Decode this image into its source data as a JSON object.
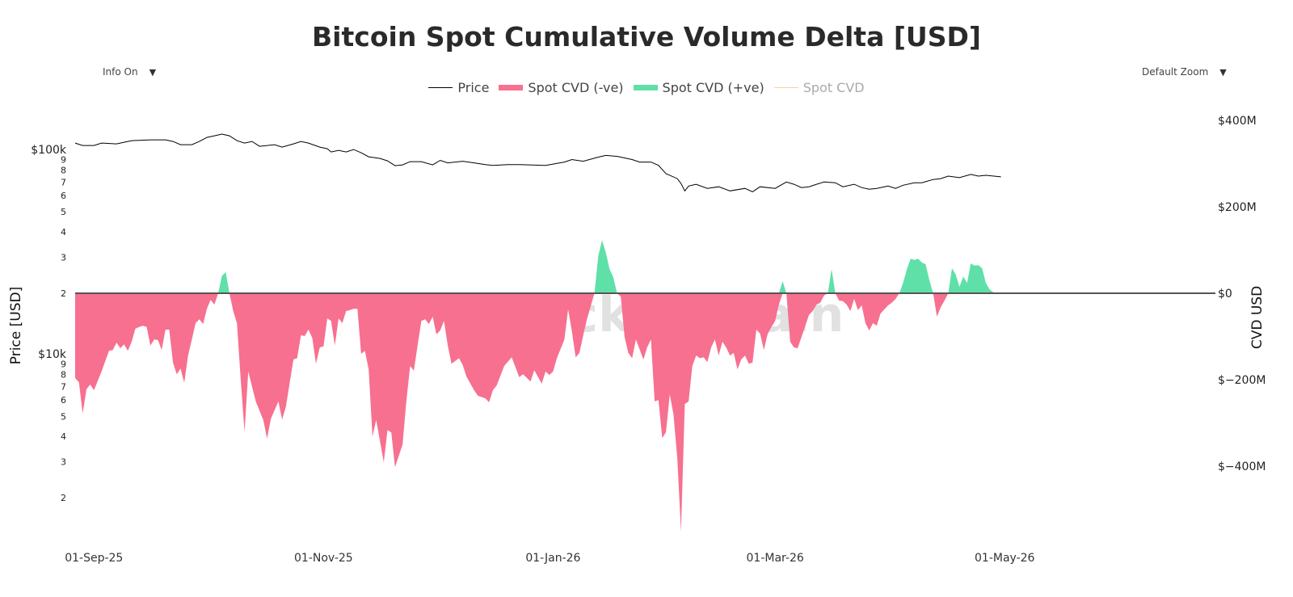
{
  "title": "Bitcoin Spot Cumulative Volume Delta [USD]",
  "controls": {
    "info_label": "Info On",
    "zoom_label": "Default Zoom",
    "dropdown_icon": "triangle-down-icon"
  },
  "watermark": "_checkonchain",
  "legend": [
    {
      "label": "Price",
      "color": "#000000",
      "kind": "line"
    },
    {
      "label": "Spot CVD (-ve)",
      "color": "#f7708f",
      "kind": "box"
    },
    {
      "label": "Spot CVD (+ve)",
      "color": "#5fe0a9",
      "kind": "box"
    },
    {
      "label": "Spot CVD",
      "color": "#f0d5a8",
      "kind": "line",
      "hidden": true
    }
  ],
  "chart_data": {
    "type": "line+area",
    "title": "Bitcoin Spot Cumulative Volume Delta [USD]",
    "ylabel_left": "Price [USD]",
    "ylabel_right": "CVD USD",
    "left_axis": {
      "scale": "log",
      "range": [
        1280,
        148000
      ],
      "ticks": [
        [
          100000,
          "$100k"
        ],
        [
          90000,
          "9"
        ],
        [
          80000,
          "8"
        ],
        [
          70000,
          "7"
        ],
        [
          60000,
          "6"
        ],
        [
          50000,
          "5"
        ],
        [
          40000,
          "4"
        ],
        [
          30000,
          "3"
        ],
        [
          20000,
          "2"
        ],
        [
          10000,
          "$10k"
        ],
        [
          9000,
          "9"
        ],
        [
          8000,
          "8"
        ],
        [
          7000,
          "7"
        ],
        [
          6000,
          "6"
        ],
        [
          5000,
          "5"
        ],
        [
          4000,
          "4"
        ],
        [
          3000,
          "3"
        ],
        [
          2000,
          "2"
        ]
      ]
    },
    "right_axis": {
      "scale": "linear",
      "range": [
        -564,
        411
      ],
      "unit": "USD millions",
      "ticks": [
        [
          400,
          "$400M"
        ],
        [
          200,
          "$200M"
        ],
        [
          0,
          "$0"
        ],
        [
          -200,
          "$−200M"
        ],
        [
          -400,
          "$−400M"
        ]
      ]
    },
    "x_axis": {
      "range": [
        "2025-08-27",
        "2026-06-26"
      ],
      "ticks": [
        [
          "2025-09-01",
          "01-Sep-25"
        ],
        [
          "2025-11-01",
          "01-Nov-25"
        ],
        [
          "2026-01-01",
          "01-Jan-26"
        ],
        [
          "2026-03-01",
          "01-Mar-26"
        ],
        [
          "2026-05-01",
          "01-May-26"
        ]
      ]
    },
    "grid": false,
    "legend_position": "top-center",
    "price": [
      [
        "2025-08-27",
        108500
      ],
      [
        "2025-08-29",
        105600
      ],
      [
        "2025-09-01",
        105600
      ],
      [
        "2025-09-03",
        108500
      ],
      [
        "2025-09-07",
        107500
      ],
      [
        "2025-09-11",
        111500
      ],
      [
        "2025-09-16",
        112500
      ],
      [
        "2025-09-20",
        112500
      ],
      [
        "2025-09-22",
        110500
      ],
      [
        "2025-09-24",
        106600
      ],
      [
        "2025-09-27",
        106600
      ],
      [
        "2025-09-29",
        110500
      ],
      [
        "2025-10-01",
        115700
      ],
      [
        "2025-10-03",
        117800
      ],
      [
        "2025-10-05",
        120000
      ],
      [
        "2025-10-07",
        117800
      ],
      [
        "2025-10-09",
        111500
      ],
      [
        "2025-10-11",
        108500
      ],
      [
        "2025-10-13",
        110500
      ],
      [
        "2025-10-15",
        104600
      ],
      [
        "2025-10-19",
        106600
      ],
      [
        "2025-10-21",
        103700
      ],
      [
        "2025-10-24",
        107500
      ],
      [
        "2025-10-26",
        110500
      ],
      [
        "2025-10-28",
        108500
      ],
      [
        "2025-10-31",
        103700
      ],
      [
        "2025-11-02",
        101800
      ],
      [
        "2025-11-03",
        98200
      ],
      [
        "2025-11-05",
        100000
      ],
      [
        "2025-11-07",
        98200
      ],
      [
        "2025-11-09",
        100900
      ],
      [
        "2025-11-11",
        97300
      ],
      [
        "2025-11-13",
        93000
      ],
      [
        "2025-11-16",
        91300
      ],
      [
        "2025-11-18",
        88800
      ],
      [
        "2025-11-20",
        84100
      ],
      [
        "2025-11-22",
        84900
      ],
      [
        "2025-11-24",
        88000
      ],
      [
        "2025-11-27",
        88000
      ],
      [
        "2025-11-30",
        84900
      ],
      [
        "2025-12-02",
        89300
      ],
      [
        "2025-12-04",
        86800
      ],
      [
        "2025-12-08",
        88400
      ],
      [
        "2025-12-11",
        86800
      ],
      [
        "2025-12-14",
        85200
      ],
      [
        "2025-12-16",
        84400
      ],
      [
        "2025-12-20",
        85200
      ],
      [
        "2025-12-23",
        85200
      ],
      [
        "2025-12-30",
        84400
      ],
      [
        "2026-01-04",
        87600
      ],
      [
        "2026-01-06",
        90100
      ],
      [
        "2026-01-09",
        88400
      ],
      [
        "2026-01-13",
        92600
      ],
      [
        "2026-01-15",
        94400
      ],
      [
        "2026-01-18",
        93500
      ],
      [
        "2026-01-22",
        90100
      ],
      [
        "2026-01-24",
        87600
      ],
      [
        "2026-01-27",
        87600
      ],
      [
        "2026-01-29",
        84400
      ],
      [
        "2026-01-31",
        76900
      ],
      [
        "2026-02-03",
        72700
      ],
      [
        "2026-02-04",
        68800
      ],
      [
        "2026-02-05",
        63300
      ],
      [
        "2026-02-06",
        66900
      ],
      [
        "2026-02-08",
        68200
      ],
      [
        "2026-02-11",
        65100
      ],
      [
        "2026-02-14",
        66300
      ],
      [
        "2026-02-17",
        63300
      ],
      [
        "2026-02-21",
        65100
      ],
      [
        "2026-02-23",
        62700
      ],
      [
        "2026-02-25",
        66300
      ],
      [
        "2026-03-01",
        65100
      ],
      [
        "2026-03-04",
        70000
      ],
      [
        "2026-03-06",
        68200
      ],
      [
        "2026-03-08",
        65700
      ],
      [
        "2026-03-10",
        66300
      ],
      [
        "2026-03-12",
        68200
      ],
      [
        "2026-03-14",
        70000
      ],
      [
        "2026-03-17",
        69400
      ],
      [
        "2026-03-19",
        66300
      ],
      [
        "2026-03-22",
        68200
      ],
      [
        "2026-03-24",
        65700
      ],
      [
        "2026-03-26",
        64500
      ],
      [
        "2026-03-28",
        65100
      ],
      [
        "2026-03-31",
        66900
      ],
      [
        "2026-04-02",
        65100
      ],
      [
        "2026-04-04",
        67500
      ],
      [
        "2026-04-07",
        69400
      ],
      [
        "2026-04-09",
        69400
      ],
      [
        "2026-04-12",
        72000
      ],
      [
        "2026-04-14",
        72700
      ],
      [
        "2026-04-16",
        74800
      ],
      [
        "2026-04-19",
        73500
      ],
      [
        "2026-04-22",
        76200
      ],
      [
        "2026-04-24",
        74800
      ],
      [
        "2026-04-26",
        75500
      ],
      [
        "2026-04-30",
        74200
      ]
    ],
    "spot_cvd_musd": [
      [
        "2025-08-27",
        -196
      ],
      [
        "2025-08-28",
        -206
      ],
      [
        "2025-08-29",
        -278
      ],
      [
        "2025-08-30",
        -222
      ],
      [
        "2025-08-31",
        -211
      ],
      [
        "2025-09-01",
        -224
      ],
      [
        "2025-09-03",
        -181
      ],
      [
        "2025-09-05",
        -133
      ],
      [
        "2025-09-06",
        -131
      ],
      [
        "2025-09-07",
        -114
      ],
      [
        "2025-09-08",
        -127
      ],
      [
        "2025-09-09",
        -118
      ],
      [
        "2025-09-10",
        -133
      ],
      [
        "2025-09-11",
        -112
      ],
      [
        "2025-09-12",
        -82
      ],
      [
        "2025-09-13",
        -78
      ],
      [
        "2025-09-14",
        -75
      ],
      [
        "2025-09-15",
        -78
      ],
      [
        "2025-09-16",
        -121
      ],
      [
        "2025-09-17",
        -107
      ],
      [
        "2025-09-18",
        -108
      ],
      [
        "2025-09-19",
        -131
      ],
      [
        "2025-09-20",
        -84
      ],
      [
        "2025-09-21",
        -84
      ],
      [
        "2025-09-22",
        -161
      ],
      [
        "2025-09-23",
        -187
      ],
      [
        "2025-09-24",
        -174
      ],
      [
        "2025-09-25",
        -207
      ],
      [
        "2025-09-26",
        -144
      ],
      [
        "2025-09-27",
        -107
      ],
      [
        "2025-09-28",
        -69
      ],
      [
        "2025-09-29",
        -60
      ],
      [
        "2025-09-30",
        -71
      ],
      [
        "2025-10-01",
        -36
      ],
      [
        "2025-10-02",
        -15
      ],
      [
        "2025-10-03",
        -26
      ],
      [
        "2025-10-04",
        0
      ],
      [
        "2025-10-05",
        40
      ],
      [
        "2025-10-06",
        49
      ],
      [
        "2025-10-07",
        0
      ],
      [
        "2025-10-08",
        -41
      ],
      [
        "2025-10-09",
        -69
      ],
      [
        "2025-10-10",
        -200
      ],
      [
        "2025-10-11",
        -321
      ],
      [
        "2025-10-12",
        -181
      ],
      [
        "2025-10-14",
        -250
      ],
      [
        "2025-10-16",
        -293
      ],
      [
        "2025-10-17",
        -336
      ],
      [
        "2025-10-18",
        -290
      ],
      [
        "2025-10-20",
        -250
      ],
      [
        "2025-10-21",
        -292
      ],
      [
        "2025-10-22",
        -262
      ],
      [
        "2025-10-24",
        -153
      ],
      [
        "2025-10-25",
        -150
      ],
      [
        "2025-10-26",
        -97
      ],
      [
        "2025-10-27",
        -99
      ],
      [
        "2025-10-28",
        -84
      ],
      [
        "2025-10-29",
        -103
      ],
      [
        "2025-10-30",
        -163
      ],
      [
        "2025-10-31",
        -125
      ],
      [
        "2025-11-01",
        -123
      ],
      [
        "2025-11-02",
        -58
      ],
      [
        "2025-11-03",
        -64
      ],
      [
        "2025-11-04",
        -121
      ],
      [
        "2025-11-05",
        -58
      ],
      [
        "2025-11-06",
        -69
      ],
      [
        "2025-11-07",
        -41
      ],
      [
        "2025-11-08",
        -39
      ],
      [
        "2025-11-09",
        -36
      ],
      [
        "2025-11-10",
        -36
      ],
      [
        "2025-11-11",
        -140
      ],
      [
        "2025-11-12",
        -133
      ],
      [
        "2025-11-13",
        -176
      ],
      [
        "2025-11-14",
        -331
      ],
      [
        "2025-11-15",
        -293
      ],
      [
        "2025-11-17",
        -391
      ],
      [
        "2025-11-18",
        -316
      ],
      [
        "2025-11-19",
        -322
      ],
      [
        "2025-11-20",
        -402
      ],
      [
        "2025-11-22",
        -350
      ],
      [
        "2025-11-23",
        -250
      ],
      [
        "2025-11-24",
        -168
      ],
      [
        "2025-11-25",
        -179
      ],
      [
        "2025-11-26",
        -120
      ],
      [
        "2025-11-27",
        -64
      ],
      [
        "2025-11-28",
        -60
      ],
      [
        "2025-11-29",
        -71
      ],
      [
        "2025-11-30",
        -54
      ],
      [
        "2025-12-01",
        -95
      ],
      [
        "2025-12-02",
        -86
      ],
      [
        "2025-12-03",
        -64
      ],
      [
        "2025-12-04",
        -120
      ],
      [
        "2025-12-05",
        -163
      ],
      [
        "2025-12-07",
        -150
      ],
      [
        "2025-12-08",
        -166
      ],
      [
        "2025-12-09",
        -193
      ],
      [
        "2025-12-11",
        -224
      ],
      [
        "2025-12-12",
        -237
      ],
      [
        "2025-12-14",
        -243
      ],
      [
        "2025-12-15",
        -252
      ],
      [
        "2025-12-16",
        -224
      ],
      [
        "2025-12-17",
        -213
      ],
      [
        "2025-12-19",
        -168
      ],
      [
        "2025-12-21",
        -148
      ],
      [
        "2025-12-23",
        -194
      ],
      [
        "2025-12-24",
        -187
      ],
      [
        "2025-12-26",
        -204
      ],
      [
        "2025-12-27",
        -178
      ],
      [
        "2025-12-29",
        -209
      ],
      [
        "2025-12-30",
        -181
      ],
      [
        "2025-12-31",
        -189
      ],
      [
        "2026-01-01",
        -181
      ],
      [
        "2026-01-02",
        -150
      ],
      [
        "2026-01-04",
        -107
      ],
      [
        "2026-01-05",
        -37
      ],
      [
        "2026-01-06",
        -88
      ],
      [
        "2026-01-07",
        -148
      ],
      [
        "2026-01-08",
        -138
      ],
      [
        "2026-01-09",
        -97
      ],
      [
        "2026-01-10",
        -60
      ],
      [
        "2026-01-12",
        0
      ],
      [
        "2026-01-13",
        86
      ],
      [
        "2026-01-14",
        123
      ],
      [
        "2026-01-15",
        95
      ],
      [
        "2026-01-16",
        56
      ],
      [
        "2026-01-17",
        37
      ],
      [
        "2026-01-18",
        0
      ],
      [
        "2026-01-19",
        -8
      ],
      [
        "2026-01-20",
        -101
      ],
      [
        "2026-01-21",
        -138
      ],
      [
        "2026-01-22",
        -150
      ],
      [
        "2026-01-23",
        -107
      ],
      [
        "2026-01-25",
        -153
      ],
      [
        "2026-01-26",
        -125
      ],
      [
        "2026-01-27",
        -107
      ],
      [
        "2026-01-28",
        -250
      ],
      [
        "2026-01-29",
        -247
      ],
      [
        "2026-01-30",
        -335
      ],
      [
        "2026-01-31",
        -321
      ],
      [
        "2026-02-01",
        -234
      ],
      [
        "2026-02-02",
        -280
      ],
      [
        "2026-02-03",
        -381
      ],
      [
        "2026-02-04",
        -551
      ],
      [
        "2026-02-05",
        -256
      ],
      [
        "2026-02-06",
        -250
      ],
      [
        "2026-02-07",
        -168
      ],
      [
        "2026-02-08",
        -144
      ],
      [
        "2026-02-09",
        -150
      ],
      [
        "2026-02-10",
        -148
      ],
      [
        "2026-02-11",
        -159
      ],
      [
        "2026-02-12",
        -125
      ],
      [
        "2026-02-13",
        -107
      ],
      [
        "2026-02-14",
        -144
      ],
      [
        "2026-02-15",
        -112
      ],
      [
        "2026-02-16",
        -125
      ],
      [
        "2026-02-17",
        -144
      ],
      [
        "2026-02-18",
        -138
      ],
      [
        "2026-02-19",
        -176
      ],
      [
        "2026-02-20",
        -153
      ],
      [
        "2026-02-21",
        -144
      ],
      [
        "2026-02-22",
        -163
      ],
      [
        "2026-02-23",
        -160
      ],
      [
        "2026-02-24",
        -84
      ],
      [
        "2026-02-25",
        -93
      ],
      [
        "2026-02-26",
        -131
      ],
      [
        "2026-02-27",
        -95
      ],
      [
        "2026-02-28",
        -78
      ],
      [
        "2026-03-01",
        -64
      ],
      [
        "2026-03-02",
        -26
      ],
      [
        "2026-03-03",
        28
      ],
      [
        "2026-03-04",
        0
      ],
      [
        "2026-03-05",
        -112
      ],
      [
        "2026-03-06",
        -125
      ],
      [
        "2026-03-07",
        -127
      ],
      [
        "2026-03-08",
        -101
      ],
      [
        "2026-03-10",
        -50
      ],
      [
        "2026-03-11",
        -41
      ],
      [
        "2026-03-12",
        -26
      ],
      [
        "2026-03-13",
        -22
      ],
      [
        "2026-03-14",
        -5
      ],
      [
        "2026-03-15",
        0
      ],
      [
        "2026-03-16",
        56
      ],
      [
        "2026-03-17",
        0
      ],
      [
        "2026-03-18",
        -17
      ],
      [
        "2026-03-19",
        -18
      ],
      [
        "2026-03-20",
        -26
      ],
      [
        "2026-03-21",
        -41
      ],
      [
        "2026-03-22",
        -13
      ],
      [
        "2026-03-23",
        -39
      ],
      [
        "2026-03-24",
        -28
      ],
      [
        "2026-03-25",
        -69
      ],
      [
        "2026-03-26",
        -86
      ],
      [
        "2026-03-27",
        -69
      ],
      [
        "2026-03-28",
        -75
      ],
      [
        "2026-03-29",
        -47
      ],
      [
        "2026-03-31",
        -28
      ],
      [
        "2026-04-01",
        -22
      ],
      [
        "2026-04-02",
        -13
      ],
      [
        "2026-04-03",
        0
      ],
      [
        "2026-04-04",
        24
      ],
      [
        "2026-04-05",
        55
      ],
      [
        "2026-04-06",
        80
      ],
      [
        "2026-04-07",
        77
      ],
      [
        "2026-04-08",
        80
      ],
      [
        "2026-04-09",
        71
      ],
      [
        "2026-04-10",
        67
      ],
      [
        "2026-04-11",
        30
      ],
      [
        "2026-04-12",
        0
      ],
      [
        "2026-04-13",
        -54
      ],
      [
        "2026-04-14",
        -32
      ],
      [
        "2026-04-15",
        -17
      ],
      [
        "2026-04-16",
        0
      ],
      [
        "2026-04-17",
        58
      ],
      [
        "2026-04-18",
        43
      ],
      [
        "2026-04-19",
        15
      ],
      [
        "2026-04-20",
        39
      ],
      [
        "2026-04-21",
        24
      ],
      [
        "2026-04-22",
        69
      ],
      [
        "2026-04-23",
        64
      ],
      [
        "2026-04-24",
        65
      ],
      [
        "2026-04-25",
        58
      ],
      [
        "2026-04-26",
        24
      ],
      [
        "2026-04-27",
        9
      ],
      [
        "2026-04-28",
        2
      ],
      [
        "2026-04-30",
        0
      ]
    ]
  }
}
